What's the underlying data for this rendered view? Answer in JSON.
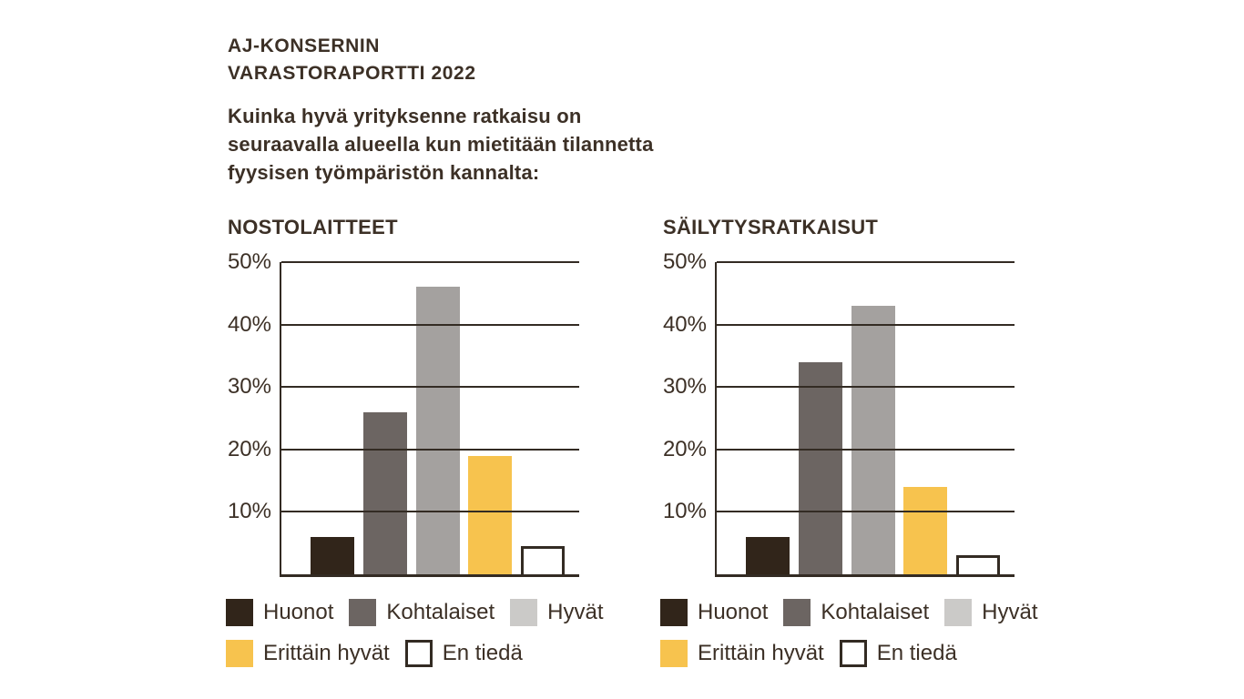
{
  "header": {
    "title_line1": "AJ-KONSERNIN",
    "title_line2": "VARASTORAPORTTI 2022",
    "subtitle_lines": [
      "Kuinka hyvä yrityksenne ratkaisu on",
      "seuraavalla alueella kun mietitään tilannetta",
      "fyysisen työmpäristön kannalta:"
    ]
  },
  "colors": {
    "text": "#3C3026",
    "axis_line": "#332B23",
    "huonot": "#31251A",
    "kohtalaiset": "#6C6562",
    "hyvat_bar": "#A4A19F",
    "hyvat_legend_chip": "#CBCAC8",
    "erittain_hyvat": "#F7C34E",
    "en_tieda_fill": "#FFFFFF"
  },
  "chart_data": [
    {
      "type": "bar",
      "title": "NOSTOLAITTEET",
      "categories": [
        "Huonot",
        "Kohtalaiset",
        "Hyvät",
        "Erittäin hyvät",
        "En tiedä"
      ],
      "values": [
        6,
        26,
        46,
        19,
        4.5
      ],
      "unit": "%",
      "xlabel": "",
      "ylabel": "",
      "ylim": [
        0,
        50
      ],
      "yticks": [
        "50%",
        "40%",
        "30%",
        "20%",
        "10%"
      ],
      "grid": true,
      "legend_position": "bottom",
      "bar_colors": [
        {
          "fill": "#31251A"
        },
        {
          "fill": "#6C6562"
        },
        {
          "fill": "#A4A19F"
        },
        {
          "fill": "#F7C34E"
        },
        {
          "fill": "#FFFFFF",
          "border": "#332B23"
        }
      ]
    },
    {
      "type": "bar",
      "title": "SÄILYTYSRATKAISUT",
      "categories": [
        "Huonot",
        "Kohtalaiset",
        "Hyvät",
        "Erittäin hyvät",
        "En tiedä"
      ],
      "values": [
        6,
        34,
        43,
        14,
        3
      ],
      "unit": "%",
      "xlabel": "",
      "ylabel": "",
      "ylim": [
        0,
        50
      ],
      "yticks": [
        "50%",
        "40%",
        "30%",
        "20%",
        "10%"
      ],
      "grid": true,
      "legend_position": "bottom",
      "bar_colors": [
        {
          "fill": "#31251A"
        },
        {
          "fill": "#6C6562"
        },
        {
          "fill": "#A4A19F"
        },
        {
          "fill": "#F7C34E"
        },
        {
          "fill": "#FFFFFF",
          "border": "#332B23"
        }
      ]
    }
  ],
  "legend": {
    "items": [
      {
        "label": "Huonot",
        "color": "#31251A"
      },
      {
        "label": "Kohtalaiset",
        "color": "#6C6562"
      },
      {
        "label": "Hyvät",
        "color": "#CBCAC8"
      },
      {
        "label": "Erittäin hyvät",
        "color": "#F7C34E"
      },
      {
        "label": "En tiedä",
        "color": "#FFFFFF",
        "border": "#332B23"
      }
    ]
  }
}
